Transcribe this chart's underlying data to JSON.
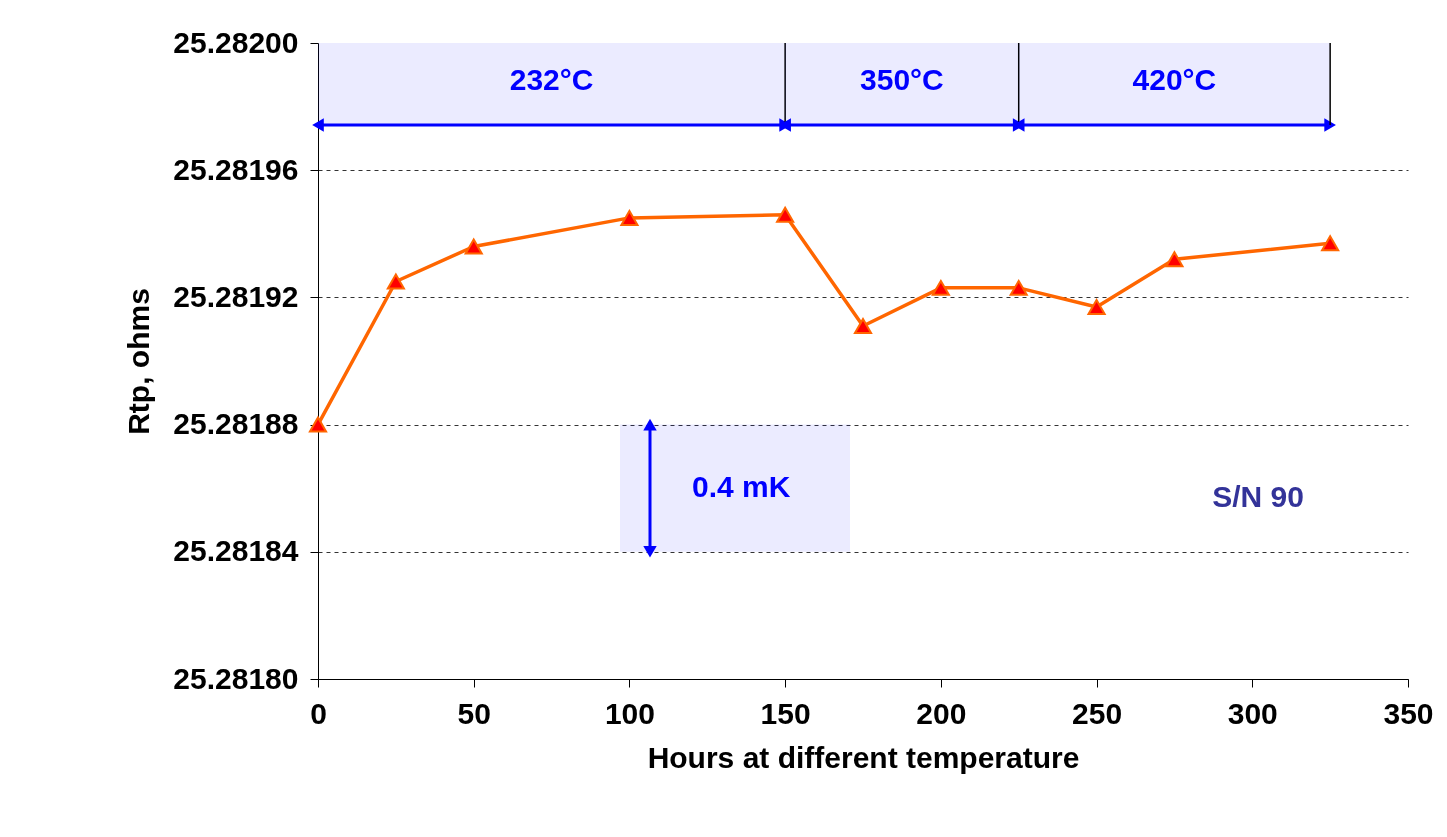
{
  "chart_data": {
    "type": "line",
    "xlabel": "Hours at different temperature",
    "ylabel": "Rtp, ohms",
    "x": [
      0,
      25,
      50,
      100,
      150,
      175,
      200,
      225,
      250,
      275,
      325
    ],
    "series": [
      {
        "color": "#ff6600",
        "values": [
          25.28188,
          25.281925,
          25.281936,
          25.281945,
          25.281946,
          25.281911,
          25.281923,
          25.281923,
          25.281917,
          25.281932,
          25.281937
        ]
      }
    ],
    "marker": "triangle",
    "grid": "y",
    "xlim": [
      0,
      350
    ],
    "xticks": [
      0,
      50,
      100,
      150,
      200,
      250,
      300,
      350
    ],
    "ylim": [
      25.2818,
      25.282
    ],
    "yticks": [
      {
        "value": 25.2818,
        "label": "25.28180"
      },
      {
        "value": 25.28184,
        "label": "25.28184"
      },
      {
        "value": 25.28188,
        "label": "25.28188"
      },
      {
        "value": 25.28192,
        "label": "25.28192"
      },
      {
        "value": 25.28196,
        "label": "25.28196"
      },
      {
        "value": 25.282,
        "label": "25.28200"
      }
    ],
    "bands": [
      {
        "axis": "x",
        "from": 0,
        "to": 150,
        "label": "232°C",
        "color": "#0000ff"
      },
      {
        "axis": "x",
        "from": 150,
        "to": 225,
        "label": "350°C",
        "color": "#0000ff"
      },
      {
        "axis": "x",
        "from": 225,
        "to": 325,
        "label": "420°C",
        "color": "#0000ff"
      },
      {
        "axis": "y",
        "from": 25.28184,
        "to": 25.28188,
        "label": "0.4 mK",
        "color": "#0000ff"
      }
    ],
    "annotations": [
      "S/N 90"
    ]
  }
}
